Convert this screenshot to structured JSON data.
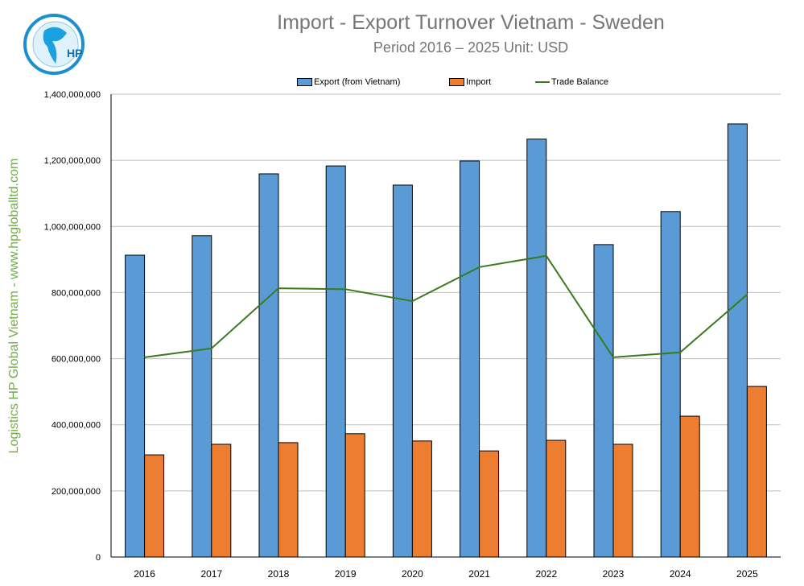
{
  "watermark": "Logistics HP Global Vietnam - www.hpgloballtd.com",
  "logo_text": "HP",
  "chart_data": {
    "type": "bar",
    "title": "Import - Export Turnover Vietnam - Sweden",
    "subtitle": "Period 2016 – 2025  Unit: USD",
    "categories": [
      "2016",
      "2017",
      "2018",
      "2019",
      "2020",
      "2021",
      "2022",
      "2023",
      "2024",
      "2025"
    ],
    "series": [
      {
        "name": "Export (from Vietnam)",
        "type": "bar",
        "color": "#5b9bd5",
        "values": [
          913000000,
          972000000,
          1159000000,
          1183000000,
          1125000000,
          1198000000,
          1264000000,
          945000000,
          1045000000,
          1310000000
        ]
      },
      {
        "name": "Import",
        "type": "bar",
        "color": "#ed7d31",
        "values": [
          309000000,
          341000000,
          346000000,
          373000000,
          351000000,
          321000000,
          353000000,
          341000000,
          426000000,
          516000000
        ]
      },
      {
        "name": "Trade Balance",
        "type": "line",
        "color": "#3a7a1f",
        "values": [
          604000000,
          631000000,
          813000000,
          810000000,
          774000000,
          877000000,
          911000000,
          604000000,
          619000000,
          794000000
        ]
      }
    ],
    "ylim": [
      0,
      1400000000
    ],
    "yticks": [
      "0",
      "200,000,000",
      "400,000,000",
      "600,000,000",
      "800,000,000",
      "1,000,000,000",
      "1,200,000,000",
      "1,400,000,000"
    ],
    "grid": true,
    "legend": "top"
  }
}
